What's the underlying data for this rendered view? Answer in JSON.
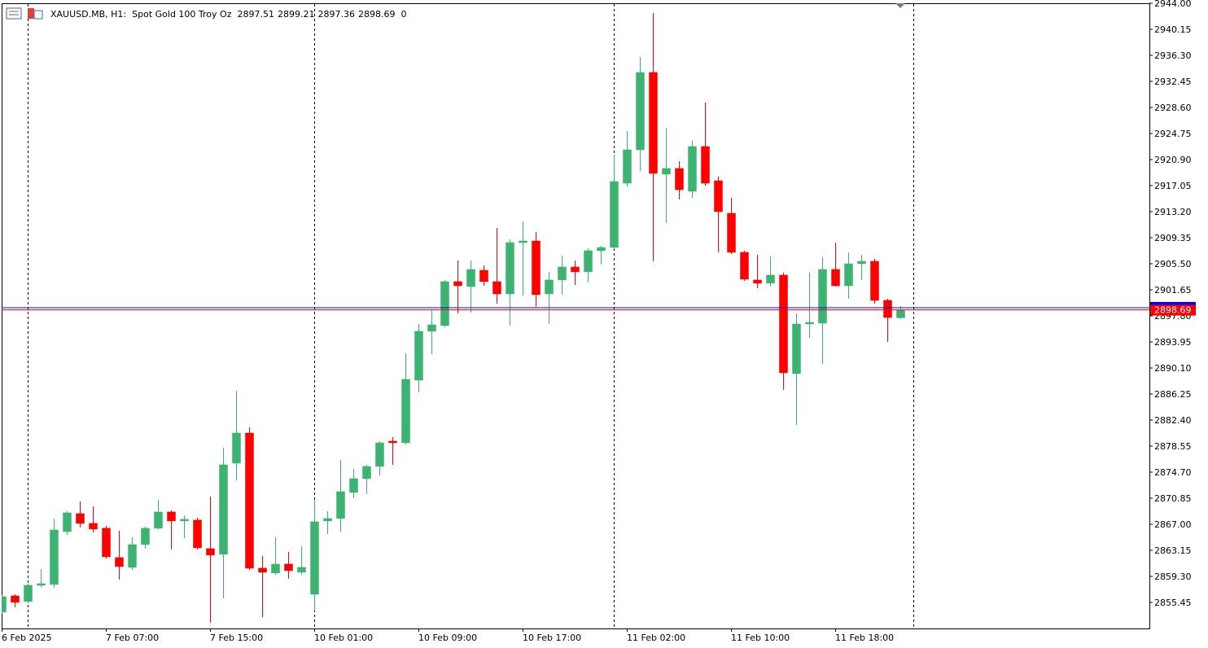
{
  "chart_data": {
    "type": "candlestick",
    "title": "XAUUSD.MB, H1:",
    "subtitle": "Spot Gold 100 Troy Oz",
    "tick_volume": 0,
    "up_color": "#3cb371",
    "down_color": "#ff0000",
    "bid": 2898.69,
    "bid_color": "#ff0000",
    "ask": 2899.01,
    "ask_color": "#0000ff",
    "categories": [
      "6 Feb 2025",
      null,
      null,
      null,
      null,
      null,
      null,
      null,
      "7 Feb 07:00",
      null,
      null,
      null,
      null,
      null,
      null,
      null,
      "7 Feb 15:00",
      null,
      null,
      null,
      null,
      null,
      null,
      null,
      "10 Feb 01:00",
      null,
      null,
      null,
      null,
      null,
      null,
      null,
      "10 Feb 09:00",
      null,
      null,
      null,
      null,
      null,
      null,
      null,
      "10 Feb 17:00",
      null,
      null,
      null,
      null,
      null,
      null,
      null,
      "11 Feb 02:00",
      null,
      null,
      null,
      null,
      null,
      null,
      null,
      "11 Feb 10:00",
      null,
      null,
      null,
      null,
      null,
      null,
      null,
      "11 Feb 18:00",
      null,
      null,
      null,
      null,
      null
    ],
    "open": [
      2854.01,
      2856.42,
      2855.58,
      2857.98,
      2858.1,
      2865.92,
      2868.57,
      2867.13,
      2866.41,
      2862.07,
      2860.63,
      2864.0,
      2866.41,
      2868.81,
      2867.49,
      2867.61,
      2863.4,
      2862.56,
      2876.03,
      2880.48,
      2860.51,
      2859.79,
      2861.11,
      2859.91,
      2856.66,
      2867.49,
      2867.85,
      2871.7,
      2873.74,
      2875.55,
      2879.28,
      2879.04,
      2888.3,
      2895.52,
      2896.36,
      2902.86,
      2902.13,
      2904.54,
      2902.86,
      2901.05,
      2908.63,
      2908.87,
      2901.05,
      2903.1,
      2905.02,
      2904.3,
      2907.43,
      2907.91,
      2917.41,
      2922.34,
      2933.77,
      2918.74,
      2919.58,
      2916.21,
      2922.83,
      2917.77,
      2912.96,
      2907.19,
      2903.1,
      2902.62,
      2903.82,
      2889.26,
      2896.6,
      2896.72,
      2904.66,
      2902.25,
      2905.5,
      2905.86,
      2900.09,
      2897.51
    ],
    "high": [
      2856.54,
      2856.66,
      2858.22,
      2860.39,
      2867.85,
      2868.93,
      2870.38,
      2869.65,
      2866.77,
      2866.04,
      2865.08,
      2866.65,
      2870.62,
      2869.05,
      2868.33,
      2867.97,
      2871.1,
      2878.31,
      2886.74,
      2881.32,
      2862.32,
      2865.08,
      2862.92,
      2863.76,
      2870.5,
      2868.93,
      2876.51,
      2875.19,
      2875.79,
      2879.28,
      2879.88,
      2892.27,
      2896.6,
      2898.77,
      2903.1,
      2905.98,
      2905.98,
      2905.26,
      2910.8,
      2909.11,
      2911.76,
      2910.19,
      2904.3,
      2906.71,
      2905.98,
      2907.79,
      2908.15,
      2921.62,
      2925.11,
      2936.06,
      2942.56,
      2925.59,
      2920.66,
      2923.67,
      2929.32,
      2918.37,
      2915.25,
      2907.43,
      2906.83,
      2906.59,
      2904.18,
      2898.16,
      2904.18,
      2906.47,
      2908.63,
      2907.19,
      2906.83,
      2906.22,
      2900.33,
      2899.21
    ],
    "low": [
      2853.77,
      2854.74,
      2855.34,
      2857.74,
      2857.62,
      2865.44,
      2866.53,
      2865.8,
      2861.95,
      2858.83,
      2860.27,
      2863.4,
      2866.28,
      2863.28,
      2864.96,
      2863.28,
      2852.45,
      2856.06,
      2873.5,
      2860.27,
      2853.29,
      2859.55,
      2858.95,
      2859.55,
      2854.25,
      2865.56,
      2865.92,
      2870.86,
      2871.46,
      2874.22,
      2875.79,
      2878.8,
      2886.5,
      2892.15,
      2896.12,
      2898.16,
      2898.28,
      2902.25,
      2899.61,
      2896.36,
      2900.81,
      2899.13,
      2896.6,
      2900.93,
      2902.37,
      2902.74,
      2905.38,
      2907.67,
      2916.93,
      2919.22,
      2905.86,
      2911.52,
      2915.01,
      2915.25,
      2917.05,
      2907.19,
      2906.95,
      2902.98,
      2901.89,
      2902.13,
      2886.86,
      2881.68,
      2894.56,
      2890.71,
      2902.13,
      2900.33,
      2903.1,
      2899.61,
      2893.95,
      2897.36
    ],
    "close": [
      2856.3,
      2855.46,
      2857.98,
      2858.22,
      2866.16,
      2868.69,
      2867.13,
      2866.28,
      2862.19,
      2860.75,
      2864.0,
      2866.41,
      2868.81,
      2867.49,
      2867.73,
      2863.52,
      2862.44,
      2875.79,
      2880.48,
      2860.51,
      2859.91,
      2861.11,
      2860.15,
      2860.63,
      2867.37,
      2867.85,
      2871.82,
      2873.74,
      2875.55,
      2879.04,
      2879.04,
      2888.42,
      2895.52,
      2896.48,
      2902.86,
      2902.25,
      2904.66,
      2902.86,
      2901.05,
      2908.63,
      2908.87,
      2900.93,
      2903.1,
      2905.02,
      2904.3,
      2907.43,
      2907.91,
      2917.65,
      2922.34,
      2933.77,
      2918.86,
      2919.58,
      2916.45,
      2922.83,
      2917.41,
      2913.2,
      2907.19,
      2903.22,
      2902.62,
      2903.82,
      2889.38,
      2896.6,
      2896.84,
      2904.66,
      2902.25,
      2905.5,
      2905.86,
      2900.09,
      2897.56,
      2898.69
    ],
    "ylim": [
      2851.6,
      2944.0
    ],
    "yticks": [
      {
        "value": 2944.0,
        "label": "2944.00"
      },
      2940.15,
      {
        "value": 2936.3,
        "label": "2936.30"
      },
      2932.45,
      {
        "value": 2928.6,
        "label": "2928.60"
      },
      2924.75,
      {
        "value": 2920.9,
        "label": "2920.90"
      },
      2917.05,
      {
        "value": 2913.2,
        "label": "2913.20"
      },
      2909.35,
      {
        "value": 2905.5,
        "label": "2905.50"
      },
      2901.65,
      {
        "value": 2897.8,
        "label": "2897.80"
      },
      2893.95,
      {
        "value": 2890.1,
        "label": "2890.10"
      },
      2886.25,
      {
        "value": 2882.4,
        "label": "2882.40"
      },
      2878.55,
      {
        "value": 2874.7,
        "label": "2874.70"
      },
      2870.85,
      {
        "value": 2867.0,
        "label": "2867.00"
      },
      2863.15,
      {
        "value": 2859.3,
        "label": "2859.30"
      },
      2855.45
    ],
    "grid": false
  }
}
